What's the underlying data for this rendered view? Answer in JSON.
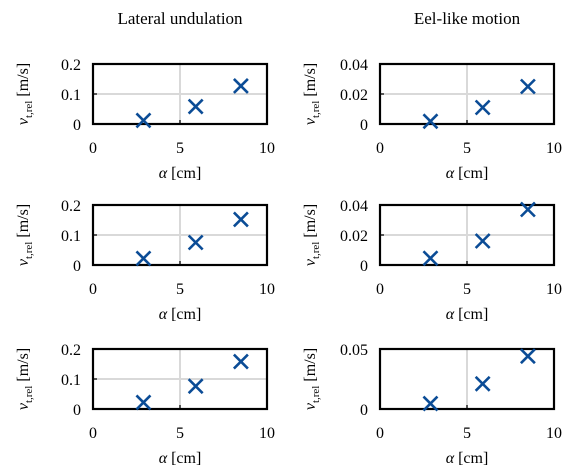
{
  "columns": [
    {
      "title": "Lateral undulation"
    },
    {
      "title": "Eel-like motion"
    }
  ],
  "marker_color": "#0b4c96",
  "grid_color": "#d9d9d9",
  "chart_data": [
    {
      "type": "scatter",
      "row": 0,
      "col": 0,
      "x": [
        2.9,
        5.9,
        8.5
      ],
      "y": [
        0.012,
        0.058,
        0.127
      ],
      "xlim": [
        0,
        10
      ],
      "ylim": [
        0,
        0.2
      ],
      "xticks": [
        "0",
        "5",
        "10"
      ],
      "yticks": [
        "0",
        "0.1",
        "0.2"
      ],
      "xlabel": "α [cm]",
      "ylabel": "v_t,rel [m/s]",
      "grid": true,
      "marker": "x"
    },
    {
      "type": "scatter",
      "row": 0,
      "col": 1,
      "x": [
        2.9,
        5.9,
        8.5
      ],
      "y": [
        0.0018,
        0.011,
        0.025
      ],
      "xlim": [
        0,
        10
      ],
      "ylim": [
        0,
        0.04
      ],
      "xticks": [
        "0",
        "5",
        "10"
      ],
      "yticks": [
        "0",
        "0.02",
        "0.04"
      ],
      "xlabel": "α [cm]",
      "ylabel": "v_t,rel [m/s]",
      "grid": true,
      "marker": "x"
    },
    {
      "type": "scatter",
      "row": 1,
      "col": 0,
      "x": [
        2.9,
        5.9,
        8.5
      ],
      "y": [
        0.022,
        0.075,
        0.152
      ],
      "xlim": [
        0,
        10
      ],
      "ylim": [
        0,
        0.2
      ],
      "xticks": [
        "0",
        "5",
        "10"
      ],
      "yticks": [
        "0",
        "0.1",
        "0.2"
      ],
      "xlabel": "α [cm]",
      "ylabel": "v_t,rel [m/s]",
      "grid": true,
      "marker": "x"
    },
    {
      "type": "scatter",
      "row": 1,
      "col": 1,
      "x": [
        2.9,
        5.9,
        8.5
      ],
      "y": [
        0.0045,
        0.016,
        0.037
      ],
      "xlim": [
        0,
        10
      ],
      "ylim": [
        0,
        0.04
      ],
      "xticks": [
        "0",
        "5",
        "10"
      ],
      "yticks": [
        "0",
        "0.02",
        "0.04"
      ],
      "xlabel": "α [cm]",
      "ylabel": "v_t,rel [m/s]",
      "grid": true,
      "marker": "x"
    },
    {
      "type": "scatter",
      "row": 2,
      "col": 0,
      "x": [
        2.9,
        5.9,
        8.5
      ],
      "y": [
        0.022,
        0.076,
        0.158
      ],
      "xlim": [
        0,
        10
      ],
      "ylim": [
        0,
        0.2
      ],
      "xticks": [
        "0",
        "5",
        "10"
      ],
      "yticks": [
        "0",
        "0.1",
        "0.2"
      ],
      "xlabel": "α [cm]",
      "ylabel": "v_t,rel [m/s]",
      "grid": true,
      "marker": "x"
    },
    {
      "type": "scatter",
      "row": 2,
      "col": 1,
      "x": [
        2.9,
        5.9,
        8.5
      ],
      "y": [
        0.0045,
        0.021,
        0.044
      ],
      "xlim": [
        0,
        10
      ],
      "ylim": [
        0,
        0.05
      ],
      "xticks": [
        "0",
        "5",
        "10"
      ],
      "yticks": [
        "0",
        "0.05"
      ],
      "xlabel": "α [cm]",
      "ylabel": "v_t,rel [m/s]",
      "grid": true,
      "marker": "x"
    }
  ]
}
